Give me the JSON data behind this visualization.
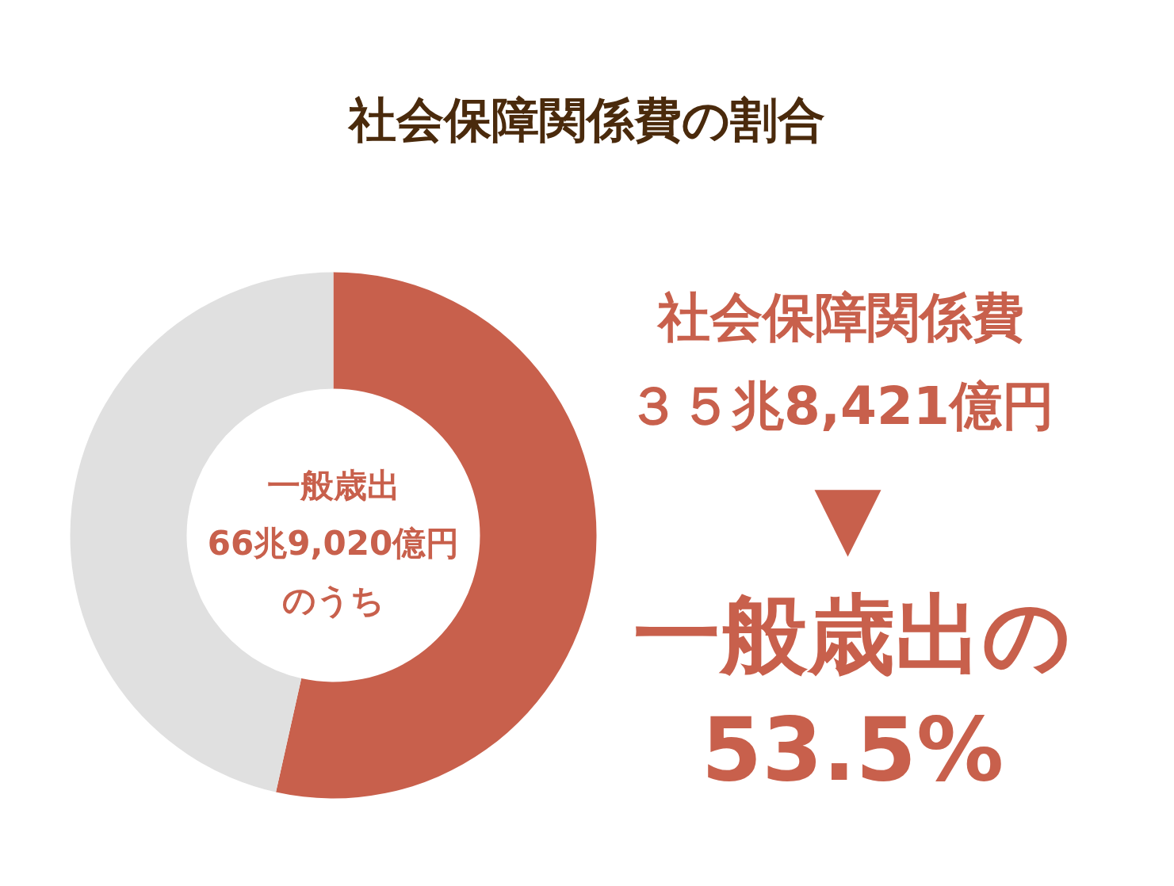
{
  "chart_data": {
    "type": "donut",
    "title": "社会保障関係費の割合",
    "categories": [
      null,
      null
    ],
    "values": [
      53.5,
      46.5
    ],
    "colors": [
      "#c8604c",
      "#e0e0e0"
    ],
    "annotations": [
      "一般歳出",
      "66兆9,020億円",
      "のうち",
      "社会保障関係費",
      "３５兆8,421億円",
      "▼",
      "一般歳出の",
      "53.5%"
    ]
  }
}
